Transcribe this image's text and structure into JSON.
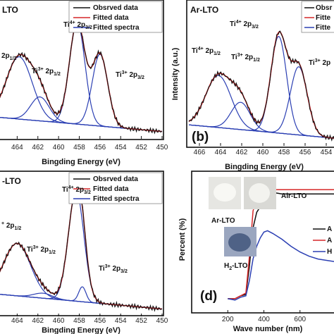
{
  "colors": {
    "observed": "#111111",
    "fitted_data": "#d62728",
    "fitted_spectra": "#2b3fb3",
    "air": "#111111",
    "ar": "#d62728",
    "h2": "#2b3fb3",
    "axis": "#111111"
  },
  "chart_data": [
    {
      "id": "a",
      "type": "line",
      "title": "LTO",
      "xlabel": "Bingding Energy (eV)",
      "ylabel": "",
      "xlim": [
        466,
        450
      ],
      "xticks": [
        "464",
        "462",
        "460",
        "458",
        "456",
        "454",
        "452",
        "450"
      ],
      "legend": [
        "Obsrved data",
        "Fitted data",
        "Fitted spectra"
      ],
      "panel_tag": "",
      "annotations": [
        {
          "text": "Ti",
          "sup": "4+",
          "rest": " 2p",
          "sub": "3/2",
          "x": 458.3
        },
        {
          "text": "Ti",
          "sup": "3+",
          "rest": " 2p",
          "sub": "1/2",
          "x": 461.6
        },
        {
          "text": "Ti",
          "sup": "3+",
          "rest": " 2p",
          "sub": "3/2",
          "x": 456.0
        },
        {
          "text": "2p",
          "sup": "",
          "rest": "",
          "sub": "1/2",
          "x": 464.3
        }
      ],
      "components": [
        {
          "center": 463.8,
          "amp": 0.52,
          "width": 1.25
        },
        {
          "center": 461.8,
          "amp": 0.2,
          "width": 0.9
        },
        {
          "center": 458.2,
          "amp": 0.85,
          "width": 0.75
        },
        {
          "center": 456.0,
          "amp": 0.6,
          "width": 0.75
        }
      ],
      "background": [
        0.14,
        0.02
      ]
    },
    {
      "id": "b",
      "type": "line",
      "title": "Ar-LTO",
      "xlabel": "Bingding Energy (eV)",
      "ylabel": "Intensity (a.u.)",
      "xlim": [
        467,
        453
      ],
      "xticks": [
        "466",
        "464",
        "462",
        "460",
        "458",
        "456",
        "454"
      ],
      "legend": [
        "Obsr",
        "Fitte",
        "Fitte"
      ],
      "panel_tag": "(b)",
      "annotations": [
        {
          "text": "Ti",
          "sup": "4+",
          "rest": " 2p",
          "sub": "3/2",
          "x": 459.5
        },
        {
          "text": "Ti",
          "sup": "4+",
          "rest": " 2p",
          "sub": "1/2",
          "x": 464.2
        },
        {
          "text": "Ti",
          "sup": "3+",
          "rest": " 2p",
          "sub": "1/2",
          "x": 462.2
        },
        {
          "text": "Ti",
          "sup": "3+",
          "rest": " 2p",
          "sub": "",
          "x": 456.5
        }
      ],
      "components": [
        {
          "center": 464.2,
          "amp": 0.42,
          "width": 1.2
        },
        {
          "center": 462.1,
          "amp": 0.22,
          "width": 0.9
        },
        {
          "center": 458.5,
          "amp": 0.78,
          "width": 0.75
        },
        {
          "center": 456.6,
          "amp": 0.55,
          "width": 0.8
        }
      ],
      "background": [
        0.13,
        0.02
      ]
    },
    {
      "id": "c",
      "type": "line",
      "title": "-LTO",
      "xlabel": "Bingding Energy (eV)",
      "ylabel": "",
      "xlim": [
        466,
        450
      ],
      "xticks": [
        "464",
        "462",
        "460",
        "458",
        "456",
        "454",
        "452",
        "450"
      ],
      "legend": [
        "Obsrved data",
        "Fitted data",
        "Fitted spectra"
      ],
      "panel_tag": "",
      "annotations": [
        {
          "text": "Ti",
          "sup": "4+",
          "rest": " 2p",
          "sub": "3/2",
          "x": 458.3
        },
        {
          "text": "",
          "sup": "+",
          "rest": " 2p",
          "sub": "1/2",
          "x": 464.5
        },
        {
          "text": "Ti",
          "sup": "3+",
          "rest": " 2p",
          "sub": "1/2",
          "x": 461.4
        },
        {
          "text": "Ti",
          "sup": "3+",
          "rest": " 2p",
          "sub": "3/2",
          "x": 457.6
        }
      ],
      "components": [
        {
          "center": 464.0,
          "amp": 0.42,
          "width": 1.3
        },
        {
          "center": 461.5,
          "amp": 0.04,
          "width": 0.9
        },
        {
          "center": 458.3,
          "amp": 0.88,
          "width": 0.75
        },
        {
          "center": 457.7,
          "amp": 0.12,
          "width": 0.35
        }
      ],
      "background": [
        0.14,
        0.02
      ]
    },
    {
      "id": "d",
      "type": "line",
      "title": "",
      "xlabel": "Wave number (nm)",
      "ylabel": "Percent (%)",
      "xlim": [
        0,
        800
      ],
      "ylim": [
        0,
        100
      ],
      "xticks": [
        "200",
        "400",
        "600"
      ],
      "legend": [
        "A",
        "A",
        "H"
      ],
      "panel_tag": "(d)",
      "photo_labels": [
        "Air-LTO",
        "Ar-LTO",
        "H",
        "2",
        "-LTO"
      ],
      "series": [
        {
          "key": "air",
          "x": [
            200,
            240,
            270,
            300,
            320,
            340,
            360,
            380,
            400,
            420,
            450,
            500,
            550,
            600,
            650,
            700,
            750,
            800
          ],
          "y": [
            10,
            10,
            12,
            13,
            33,
            60,
            71,
            75,
            77,
            85,
            85,
            84,
            84,
            84,
            84,
            84,
            84,
            84
          ]
        },
        {
          "key": "ar",
          "x": [
            200,
            240,
            270,
            300,
            320,
            340,
            360,
            380,
            400,
            420,
            450,
            500,
            550,
            600,
            650,
            700,
            750,
            800
          ],
          "y": [
            10,
            10,
            12,
            14,
            40,
            72,
            80,
            84,
            86,
            87,
            87,
            87,
            87,
            87,
            87,
            87,
            87,
            87
          ]
        },
        {
          "key": "h2",
          "x": [
            200,
            240,
            270,
            300,
            320,
            340,
            360,
            380,
            400,
            420,
            450,
            500,
            550,
            600,
            650,
            700,
            750,
            800
          ],
          "y": [
            10,
            9,
            11,
            12,
            23,
            38,
            47,
            53,
            57,
            58,
            56,
            52,
            47,
            43,
            40,
            38,
            37,
            36
          ]
        }
      ]
    }
  ]
}
